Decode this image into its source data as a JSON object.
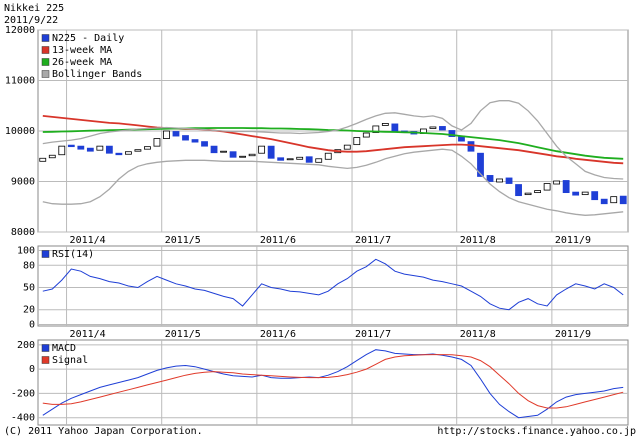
{
  "chart_data": [
    {
      "type": "candlestick",
      "title": "Nikkei 225",
      "subtitle": "2011/9/22",
      "categories": [
        null,
        null,
        null,
        null,
        null,
        null,
        null,
        null,
        null,
        null,
        null,
        null,
        null,
        null,
        null,
        null,
        null,
        null,
        null,
        null,
        null,
        null,
        null,
        null,
        null,
        null,
        null,
        null,
        null,
        null,
        null,
        null,
        null,
        null,
        null,
        null,
        null,
        null,
        null,
        null,
        null,
        null,
        null,
        null,
        null,
        null,
        null,
        null,
        null,
        null,
        null,
        null,
        null,
        null,
        null,
        null,
        null,
        null,
        null,
        null,
        null,
        null
      ],
      "xticks": [
        {
          "value": 3,
          "label": "2011/4"
        },
        {
          "value": 13,
          "label": "2011/5"
        },
        {
          "value": 23,
          "label": "2011/6"
        },
        {
          "value": 33,
          "label": "2011/7"
        },
        {
          "value": 44,
          "label": "2011/8"
        },
        {
          "value": 54,
          "label": "2011/9"
        }
      ],
      "ylim": [
        8000,
        12000
      ],
      "yticks": [
        8000,
        9000,
        10000,
        11000,
        12000
      ],
      "grid": true,
      "series": [
        {
          "name": "N225 - Daily",
          "color": "#1f3fd6",
          "open": [
            9400,
            9470,
            9530,
            9720,
            9700,
            9660,
            9620,
            9700,
            9560,
            9540,
            9600,
            9640,
            9700,
            9850,
            9990,
            9910,
            9830,
            9790,
            9700,
            9580,
            9590,
            9490,
            9510,
            9560,
            9700,
            9470,
            9430,
            9440,
            9490,
            9380,
            9440,
            9570,
            9640,
            9730,
            9880,
            9970,
            10110,
            10140,
            10000,
            9990,
            9950,
            10050,
            10090,
            10010,
            9900,
            9790,
            9560,
            9120,
            8990,
            9070,
            8940,
            8740,
            8780,
            8830,
            8950,
            9020,
            8790,
            8740,
            8800,
            8650,
            8580,
            8710
          ],
          "close": [
            9460,
            9520,
            9700,
            9690,
            9640,
            9600,
            9700,
            9560,
            9530,
            9590,
            9630,
            9690,
            9850,
            10000,
            9900,
            9820,
            9780,
            9700,
            9570,
            9600,
            9480,
            9500,
            9540,
            9700,
            9460,
            9420,
            9450,
            9480,
            9380,
            9450,
            9560,
            9630,
            9720,
            9870,
            9960,
            10100,
            10150,
            9990,
            9980,
            9940,
            10040,
            10080,
            10020,
            9890,
            9800,
            9600,
            9100,
            9000,
            9050,
            8960,
            8720,
            8770,
            8820,
            8960,
            9010,
            8780,
            8730,
            8790,
            8640,
            8560,
            8700,
            8560
          ]
        },
        {
          "name": "13-week MA",
          "color": "#d8352a",
          "values": [
            10300,
            10280,
            10260,
            10240,
            10220,
            10200,
            10180,
            10160,
            10150,
            10130,
            10110,
            10090,
            10070,
            10060,
            10050,
            10040,
            10040,
            10030,
            10010,
            9990,
            9960,
            9930,
            9900,
            9870,
            9840,
            9800,
            9760,
            9720,
            9680,
            9650,
            9620,
            9600,
            9590,
            9590,
            9600,
            9620,
            9640,
            9660,
            9680,
            9690,
            9700,
            9710,
            9720,
            9730,
            9730,
            9720,
            9700,
            9680,
            9660,
            9640,
            9620,
            9590,
            9560,
            9530,
            9500,
            9480,
            9450,
            9430,
            9410,
            9390,
            9370,
            9360
          ]
        },
        {
          "name": "26-week MA",
          "color": "#1fae1f",
          "values": [
            9980,
            9985,
            9990,
            9995,
            10000,
            10005,
            10010,
            10015,
            10020,
            10025,
            10030,
            10035,
            10040,
            10045,
            10050,
            10050,
            10055,
            10055,
            10060,
            10060,
            10060,
            10060,
            10055,
            10055,
            10050,
            10050,
            10045,
            10040,
            10035,
            10030,
            10020,
            10015,
            10010,
            10000,
            9995,
            9990,
            9985,
            9980,
            9975,
            9970,
            9960,
            9950,
            9940,
            9920,
            9900,
            9880,
            9860,
            9840,
            9820,
            9790,
            9760,
            9720,
            9680,
            9640,
            9600,
            9570,
            9540,
            9510,
            9490,
            9470,
            9460,
            9450
          ]
        },
        {
          "name": "Bollinger Bands",
          "color": "#a8a8a8",
          "upper": [
            9750,
            9780,
            9800,
            9820,
            9850,
            9900,
            9950,
            9980,
            10000,
            10020,
            10040,
            10050,
            10060,
            10070,
            10060,
            10050,
            10040,
            10030,
            10010,
            10000,
            9990,
            9990,
            9990,
            9980,
            9970,
            9960,
            9960,
            9950,
            9960,
            9970,
            9990,
            10020,
            10080,
            10150,
            10230,
            10300,
            10350,
            10360,
            10330,
            10300,
            10280,
            10300,
            10250,
            10100,
            10020,
            10150,
            10400,
            10560,
            10600,
            10600,
            10550,
            10400,
            10200,
            9950,
            9700,
            9500,
            9350,
            9200,
            9130,
            9080,
            9060,
            9050
          ],
          "lower": [
            8600,
            8560,
            8550,
            8550,
            8560,
            8600,
            8700,
            8850,
            9050,
            9200,
            9300,
            9350,
            9380,
            9400,
            9410,
            9420,
            9420,
            9420,
            9410,
            9400,
            9400,
            9400,
            9400,
            9390,
            9380,
            9370,
            9360,
            9350,
            9340,
            9330,
            9300,
            9280,
            9260,
            9280,
            9320,
            9380,
            9450,
            9500,
            9550,
            9580,
            9600,
            9620,
            9640,
            9620,
            9500,
            9350,
            9150,
            8950,
            8800,
            8680,
            8600,
            8550,
            8500,
            8450,
            8420,
            8380,
            8350,
            8330,
            8340,
            8360,
            8380,
            8400
          ]
        }
      ]
    },
    {
      "type": "line",
      "categories": [
        null,
        null,
        null,
        null,
        null,
        null,
        null,
        null,
        null,
        null,
        null,
        null,
        null,
        null,
        null,
        null,
        null,
        null,
        null,
        null,
        null,
        null,
        null,
        null,
        null,
        null,
        null,
        null,
        null,
        null,
        null,
        null,
        null,
        null,
        null,
        null,
        null,
        null,
        null,
        null,
        null,
        null,
        null,
        null,
        null,
        null,
        null,
        null,
        null,
        null,
        null,
        null,
        null,
        null,
        null,
        null,
        null,
        null,
        null,
        null,
        null,
        null
      ],
      "xticks": [
        {
          "value": 3,
          "label": "2011/4"
        },
        {
          "value": 13,
          "label": "2011/5"
        },
        {
          "value": 23,
          "label": "2011/6"
        },
        {
          "value": 33,
          "label": "2011/7"
        },
        {
          "value": 44,
          "label": "2011/8"
        },
        {
          "value": 54,
          "label": "2011/9"
        }
      ],
      "ylim": [
        -2,
        106
      ],
      "yticks": [
        0,
        20,
        50,
        80,
        100
      ],
      "grid": true,
      "series": [
        {
          "name": "RSI(14)",
          "color": "#1f3fd6",
          "values": [
            45,
            48,
            60,
            75,
            72,
            65,
            62,
            58,
            56,
            52,
            50,
            58,
            65,
            60,
            55,
            52,
            48,
            46,
            42,
            38,
            35,
            25,
            40,
            55,
            50,
            48,
            45,
            44,
            42,
            40,
            45,
            55,
            62,
            72,
            78,
            88,
            82,
            72,
            68,
            66,
            64,
            60,
            58,
            55,
            52,
            45,
            38,
            28,
            22,
            20,
            30,
            35,
            28,
            25,
            40,
            48,
            55,
            52,
            48,
            55,
            50,
            40
          ]
        }
      ]
    },
    {
      "type": "line",
      "categories": [
        null,
        null,
        null,
        null,
        null,
        null,
        null,
        null,
        null,
        null,
        null,
        null,
        null,
        null,
        null,
        null,
        null,
        null,
        null,
        null,
        null,
        null,
        null,
        null,
        null,
        null,
        null,
        null,
        null,
        null,
        null,
        null,
        null,
        null,
        null,
        null,
        null,
        null,
        null,
        null,
        null,
        null,
        null,
        null,
        null,
        null,
        null,
        null,
        null,
        null,
        null,
        null,
        null,
        null,
        null,
        null,
        null,
        null,
        null,
        null,
        null,
        null
      ],
      "ylim": [
        -460,
        240
      ],
      "yticks": [
        -400,
        -200,
        0,
        200
      ],
      "grid": true,
      "series": [
        {
          "name": "MACD",
          "color": "#1f3fd6",
          "values": [
            -380,
            -330,
            -280,
            -240,
            -210,
            -180,
            -150,
            -130,
            -110,
            -90,
            -70,
            -40,
            -10,
            10,
            25,
            30,
            20,
            0,
            -20,
            -40,
            -55,
            -60,
            -65,
            -50,
            -70,
            -75,
            -75,
            -70,
            -65,
            -70,
            -50,
            -20,
            20,
            70,
            120,
            160,
            150,
            130,
            125,
            120,
            120,
            125,
            115,
            100,
            80,
            30,
            -80,
            -200,
            -290,
            -350,
            -400,
            -390,
            -380,
            -330,
            -270,
            -230,
            -210,
            -200,
            -190,
            -180,
            -160,
            -150
          ]
        },
        {
          "name": "Signal",
          "color": "#e03a2a",
          "values": [
            -280,
            -290,
            -290,
            -285,
            -270,
            -250,
            -230,
            -210,
            -190,
            -170,
            -150,
            -130,
            -110,
            -90,
            -70,
            -50,
            -35,
            -25,
            -20,
            -25,
            -30,
            -40,
            -45,
            -50,
            -55,
            -60,
            -65,
            -68,
            -70,
            -70,
            -68,
            -60,
            -45,
            -25,
            0,
            40,
            80,
            100,
            110,
            115,
            118,
            120,
            120,
            118,
            110,
            100,
            70,
            20,
            -50,
            -120,
            -200,
            -260,
            -300,
            -320,
            -320,
            -310,
            -290,
            -270,
            -250,
            -230,
            -210,
            -190
          ]
        }
      ]
    }
  ],
  "footer": {
    "copyright": "(C) 2011 Yahoo Japan Corporation.",
    "url": "http://stocks.finance.yahoo.co.jp"
  }
}
